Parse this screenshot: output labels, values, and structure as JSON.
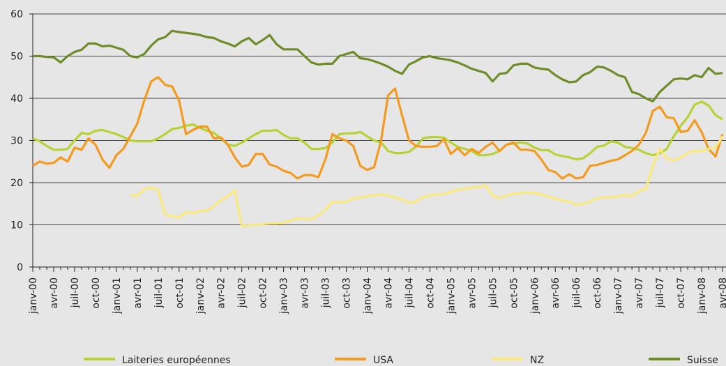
{
  "chart_data": {
    "type": "line",
    "categories": [
      "janv-00",
      null,
      null,
      "avr-00",
      null,
      null,
      "juil-00",
      null,
      null,
      "oct-00",
      null,
      null,
      "janv-01",
      null,
      null,
      "avr-01",
      null,
      null,
      "juil-01",
      null,
      null,
      "oct-01",
      null,
      null,
      "janv-02",
      null,
      null,
      "avr-02",
      null,
      null,
      "juil-02",
      null,
      null,
      "oct-02",
      null,
      null,
      "janv-03",
      null,
      null,
      "avr-03",
      null,
      null,
      "juil-03",
      null,
      null,
      "oct-03",
      null,
      null,
      "janv-04",
      null,
      null,
      "avr-04",
      null,
      null,
      "juil-04",
      null,
      null,
      "oct-04",
      null,
      null,
      "janv-05",
      null,
      null,
      "avr-05",
      null,
      null,
      "juil-05",
      null,
      null,
      "oct-05",
      null,
      null,
      "janv-06",
      null,
      null,
      "avr-06",
      null,
      null,
      "juil-06",
      null,
      null,
      "oct-06",
      null,
      null,
      "janv-07",
      null,
      null,
      "avr-07",
      null,
      null,
      "juil-07",
      null,
      null,
      "oct-07",
      null,
      null,
      "janv-08",
      null,
      null,
      "avr-08"
    ],
    "series": [
      {
        "name": "Laiteries européennes",
        "color": "#b5d334",
        "values": [
          30.5,
          29.8,
          28.7,
          27.8,
          27.8,
          28,
          30,
          31.8,
          31.5,
          32.3,
          32.5,
          32,
          31.5,
          30.8,
          30,
          29.8,
          29.8,
          29.8,
          30.5,
          31.5,
          32.7,
          33,
          33.5,
          33.8,
          33,
          32.3,
          31.8,
          30.5,
          29,
          28.7,
          29.5,
          30.5,
          31.5,
          32.3,
          32.3,
          32.5,
          31.3,
          30.5,
          30.5,
          29.5,
          28,
          28,
          28.2,
          29.5,
          31.5,
          31.7,
          31.7,
          32,
          31,
          30,
          29.5,
          27.5,
          27,
          27,
          27.3,
          28.5,
          30.5,
          30.8,
          30.8,
          30.7,
          29.5,
          28.5,
          28,
          27.5,
          26.5,
          26.5,
          26.8,
          27.5,
          29,
          29.3,
          29.5,
          29.3,
          28.3,
          27.7,
          27.7,
          26.7,
          26.3,
          26,
          25.5,
          25.8,
          27,
          28.5,
          28.8,
          29.8,
          29.5,
          28.5,
          28.2,
          27.8,
          27,
          26.5,
          27,
          28,
          31,
          33.5,
          35.5,
          38.5,
          39.2,
          38.3,
          36,
          35
        ]
      },
      {
        "name": "USA",
        "color": "#f39a1f",
        "values": [
          24,
          25,
          24.5,
          24.7,
          26,
          25,
          28.3,
          27.8,
          30.5,
          29,
          25.5,
          23.5,
          26.5,
          28,
          31,
          34,
          39.5,
          44,
          45,
          43.2,
          42.8,
          39.5,
          31.5,
          32.5,
          33.3,
          33.3,
          30.5,
          30.7,
          29,
          26,
          23.8,
          24.2,
          26.8,
          26.8,
          24.3,
          23.8,
          22.8,
          22.3,
          21,
          21.8,
          21.8,
          21.3,
          25.5,
          31.5,
          30.5,
          30,
          28.7,
          24,
          23,
          23.7,
          30,
          40.7,
          42.3,
          36,
          30,
          28.7,
          28.5,
          28.5,
          28.7,
          30.3,
          26.8,
          28.2,
          26.5,
          28,
          27,
          28.5,
          29.5,
          27.5,
          29,
          29.5,
          27.8,
          27.8,
          27.5,
          25.5,
          23,
          22.5,
          21,
          22,
          21,
          21.3,
          24,
          24.2,
          24.7,
          25.2,
          25.5,
          26.5,
          27.5,
          29,
          31.8,
          37,
          38,
          35.5,
          35.3,
          32,
          32.3,
          34.8,
          32,
          28,
          26.2,
          31.5
        ]
      },
      {
        "name": "NZ",
        "color": "#fbea7b",
        "values": [
          null,
          null,
          null,
          null,
          null,
          null,
          null,
          null,
          null,
          null,
          null,
          null,
          null,
          null,
          17,
          16.8,
          18.5,
          18.7,
          18.3,
          12.5,
          12,
          11.8,
          13,
          12.8,
          13.3,
          13.3,
          14.5,
          15.8,
          16.8,
          18.2,
          9.8,
          9.8,
          10,
          10.2,
          10.3,
          10.3,
          10.5,
          11,
          11.5,
          11.5,
          11.3,
          12.3,
          13.5,
          15.5,
          15.3,
          15.5,
          16.2,
          16.5,
          16.8,
          17,
          17.2,
          17,
          16.5,
          16,
          15.2,
          15.5,
          16.5,
          17,
          17.2,
          17.3,
          17.8,
          18.3,
          18.5,
          18.8,
          19,
          19.3,
          17,
          16.3,
          17,
          17.3,
          17.5,
          17.7,
          17.5,
          17.2,
          16.7,
          16.2,
          15.7,
          15.5,
          14.8,
          15,
          15.5,
          16.3,
          16.5,
          16.5,
          16.8,
          17,
          16.8,
          18,
          18.5,
          24,
          28,
          25.8,
          25.2,
          26,
          27,
          27.5,
          27.5,
          28,
          28.3,
          31
        ]
      },
      {
        "name": "Suisse",
        "color": "#6e8c28",
        "values": [
          50,
          50,
          49.8,
          49.7,
          48.5,
          50,
          51,
          51.5,
          53,
          53,
          52.3,
          52.5,
          52,
          51.5,
          50,
          49.7,
          50.5,
          52.5,
          54,
          54.5,
          56,
          55.7,
          55.5,
          55.3,
          55,
          54.5,
          54.3,
          53.5,
          53,
          52.3,
          53.5,
          54.3,
          52.8,
          53.8,
          55,
          52.8,
          51.6,
          51.6,
          51.6,
          50,
          48.5,
          48,
          48.2,
          48.2,
          50,
          50.5,
          51,
          49.5,
          49.3,
          48.8,
          48.2,
          47.5,
          46.5,
          45.8,
          48,
          48.8,
          49.7,
          50,
          49.5,
          49.3,
          49,
          48.5,
          47.8,
          47,
          46.5,
          46,
          44,
          45.8,
          46,
          47.8,
          48.2,
          48.2,
          47.3,
          47,
          46.8,
          45.5,
          44.5,
          43.8,
          44,
          45.5,
          46.2,
          47.5,
          47.3,
          46.5,
          45.5,
          45,
          41.5,
          41,
          40,
          39.3,
          41.5,
          43,
          44.5,
          44.7,
          44.5,
          45.5,
          45,
          47.2,
          45.8,
          46
        ]
      }
    ],
    "ylim": [
      0,
      60
    ],
    "yticks": [
      0,
      10,
      20,
      30,
      40,
      50,
      60
    ],
    "grid": true
  }
}
